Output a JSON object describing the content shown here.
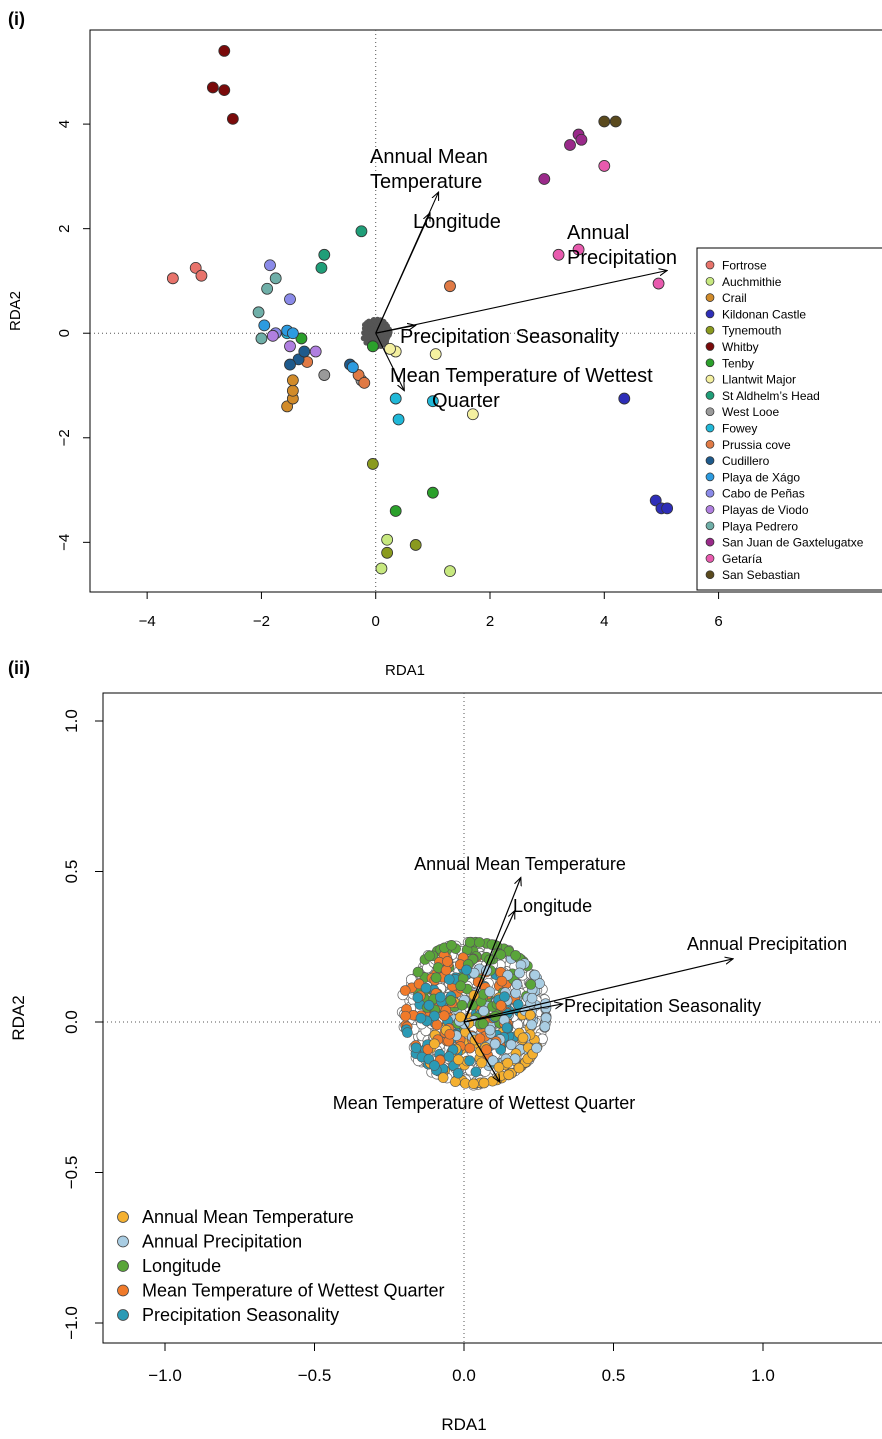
{
  "chart_data": [
    {
      "panel_label": "(i)",
      "type": "scatter",
      "xlabel": "RDA1",
      "ylabel": "RDA2",
      "xlim": [
        -5.0,
        9.0
      ],
      "ylim": [
        -4.95,
        5.8
      ],
      "xticks": [
        -4,
        -2,
        0,
        2,
        4,
        6
      ],
      "xtick_labels": [
        "−4",
        "−2",
        "0",
        "2",
        "4",
        "6"
      ],
      "yticks": [
        -4,
        -2,
        0,
        2,
        4
      ],
      "ytick_labels": [
        "−4",
        "−2",
        "0",
        "2",
        "4"
      ],
      "reference_lines": "dotted lines at x=0 and y=0",
      "legend_position": "right",
      "arrow_origin": [
        0,
        0
      ],
      "arrows": [
        {
          "label": "Annual Mean Temperature",
          "label_lines": [
            "Annual Mean",
            "Temperature"
          ],
          "x": 1.1,
          "y": 2.7
        },
        {
          "label": "Longitude",
          "label_lines": [
            "Longitude"
          ],
          "x": 0.95,
          "y": 2.3
        },
        {
          "label": "Annual Precipitation",
          "label_lines": [
            "Annual",
            "Precipitation"
          ],
          "x": 5.1,
          "y": 1.2
        },
        {
          "label": "Precipitation Seasonality",
          "label_lines": [
            "Precipitation Seasonality"
          ],
          "x": 0.7,
          "y": 0.15
        },
        {
          "label": "Mean Temperature of Wettest Quarter",
          "label_lines": [
            "Mean Temperature of Wettest",
            "Quarter"
          ],
          "x": 0.5,
          "y": -1.1
        }
      ],
      "snp_cloud": {
        "center": [
          0,
          0
        ],
        "note": "dense grey points"
      },
      "series": [
        {
          "name": "Fortrose",
          "color": "#E8736B",
          "points": [
            [
              -3.55,
              1.05
            ],
            [
              -3.15,
              1.25
            ],
            [
              -3.05,
              1.1
            ]
          ]
        },
        {
          "name": "Auchmithie",
          "color": "#C7E87F",
          "points": [
            [
              0.2,
              -3.95
            ],
            [
              0.1,
              -4.5
            ],
            [
              1.3,
              -4.55
            ]
          ]
        },
        {
          "name": "Crail",
          "color": "#D18B2A",
          "points": [
            [
              -1.55,
              -1.4
            ],
            [
              -1.45,
              -1.25
            ],
            [
              -1.45,
              -1.1
            ],
            [
              -1.45,
              -0.9
            ]
          ]
        },
        {
          "name": "Kildonan Castle",
          "color": "#2E2EB8",
          "points": [
            [
              4.35,
              -1.25
            ],
            [
              4.9,
              -3.2
            ],
            [
              5.0,
              -3.35
            ],
            [
              5.1,
              -3.35
            ]
          ]
        },
        {
          "name": "Tynemouth",
          "color": "#8A9A1E",
          "points": [
            [
              -0.05,
              -2.5
            ],
            [
              0.7,
              -4.05
            ],
            [
              0.2,
              -4.2
            ]
          ]
        },
        {
          "name": "Whitby",
          "color": "#7A0A0A",
          "points": [
            [
              -2.65,
              5.4
            ],
            [
              -2.85,
              4.7
            ],
            [
              -2.65,
              4.65
            ],
            [
              -2.5,
              4.1
            ]
          ]
        },
        {
          "name": "Tenby",
          "color": "#2BA02B",
          "points": [
            [
              1.0,
              -3.05
            ],
            [
              0.35,
              -3.4
            ],
            [
              -1.3,
              -0.1
            ],
            [
              -0.05,
              -0.25
            ]
          ]
        },
        {
          "name": "Llantwit Major",
          "color": "#F4F0A0",
          "points": [
            [
              0.35,
              -0.35
            ],
            [
              1.05,
              -0.4
            ],
            [
              1.7,
              -1.55
            ],
            [
              0.25,
              -0.3
            ]
          ]
        },
        {
          "name": "St Aldhelm’s Head",
          "color": "#1F9E78",
          "points": [
            [
              -0.25,
              1.95
            ],
            [
              -0.9,
              1.5
            ],
            [
              -0.95,
              1.25
            ]
          ]
        },
        {
          "name": "West Looe",
          "color": "#9A9A9A",
          "points": [
            [
              -0.9,
              -0.8
            ],
            [
              -0.25,
              -0.9
            ]
          ]
        },
        {
          "name": "Fowey",
          "color": "#20B8D8",
          "points": [
            [
              0.35,
              -1.25
            ],
            [
              0.4,
              -1.65
            ],
            [
              1.0,
              -1.3
            ],
            [
              -1.55,
              0.0
            ]
          ]
        },
        {
          "name": "Prussia cove",
          "color": "#E07A45",
          "points": [
            [
              1.3,
              0.9
            ],
            [
              -0.3,
              -0.8
            ],
            [
              -0.2,
              -0.95
            ],
            [
              -1.2,
              -0.55
            ]
          ]
        },
        {
          "name": "Cudillero",
          "color": "#1E5A8C",
          "points": [
            [
              -0.45,
              -0.6
            ],
            [
              -1.35,
              -0.5
            ],
            [
              -1.5,
              -0.6
            ],
            [
              -1.25,
              -0.35
            ]
          ]
        },
        {
          "name": "Playa de Xágo",
          "color": "#2C9BE0",
          "points": [
            [
              -1.95,
              0.15
            ],
            [
              -1.55,
              0.05
            ],
            [
              -1.45,
              0.0
            ],
            [
              -0.4,
              -0.65
            ]
          ]
        },
        {
          "name": "Cabo de Peñas",
          "color": "#8A8AE8",
          "points": [
            [
              -1.85,
              1.3
            ],
            [
              -1.5,
              0.65
            ],
            [
              -1.75,
              0.0
            ]
          ]
        },
        {
          "name": "Playas de Viodo",
          "color": "#B07FE0",
          "points": [
            [
              -1.5,
              -0.25
            ],
            [
              -1.05,
              -0.35
            ],
            [
              -1.8,
              -0.05
            ]
          ]
        },
        {
          "name": "Playa Pedrero",
          "color": "#6FAFA8",
          "points": [
            [
              -1.75,
              1.05
            ],
            [
              -1.9,
              0.85
            ],
            [
              -2.05,
              0.4
            ],
            [
              -2.0,
              -0.1
            ]
          ]
        },
        {
          "name": "San Juan de Gaxtelugatxe",
          "color": "#9A2A8A",
          "points": [
            [
              2.95,
              2.95
            ],
            [
              3.4,
              3.6
            ],
            [
              3.55,
              3.8
            ],
            [
              3.6,
              3.7
            ]
          ]
        },
        {
          "name": "Getaría",
          "color": "#E85AAE",
          "points": [
            [
              3.2,
              1.5
            ],
            [
              3.55,
              1.6
            ],
            [
              4.0,
              3.2
            ],
            [
              4.95,
              0.95
            ]
          ]
        },
        {
          "name": "San Sebastian",
          "color": "#5A4A1E",
          "points": [
            [
              4.0,
              4.05
            ],
            [
              4.2,
              4.05
            ]
          ]
        }
      ]
    },
    {
      "panel_label": "(ii)",
      "type": "scatter",
      "xlabel": "RDA1",
      "ylabel": "RDA2",
      "xlim": [
        -1.2,
        1.4
      ],
      "ylim": [
        -1.05,
        1.1
      ],
      "xticks": [
        -1.0,
        -0.5,
        0.0,
        0.5,
        1.0
      ],
      "xtick_labels": [
        "−1.0",
        "−0.5",
        "0.0",
        "0.5",
        "1.0"
      ],
      "yticks": [
        -1.0,
        -0.5,
        0.0,
        0.5,
        1.0
      ],
      "ytick_labels": [
        "−1.0",
        "−0.5",
        "0.0",
        "0.5",
        "1.0"
      ],
      "reference_lines": "dotted lines at x=0 and y=0",
      "legend_position": "bottom-left",
      "arrow_origin": [
        0,
        0
      ],
      "arrows": [
        {
          "label": "Annual Mean Temperature",
          "x": 0.19,
          "y": 0.48
        },
        {
          "label": "Longitude",
          "x": 0.17,
          "y": 0.37
        },
        {
          "label": "Annual Precipitation",
          "x": 0.9,
          "y": 0.21
        },
        {
          "label": "Precipitation Seasonality",
          "x": 0.33,
          "y": 0.06
        },
        {
          "label": "Mean Temperature of Wettest Quarter",
          "x": 0.12,
          "y": -0.2
        }
      ],
      "point_cloud": {
        "center": [
          0.03,
          0.03
        ],
        "radius_x": 0.25,
        "radius_y": 0.24
      },
      "legend": [
        {
          "name": "Annual Mean Temperature",
          "color": "#F4B030"
        },
        {
          "name": "Annual Precipitation",
          "color": "#A9CDE3"
        },
        {
          "name": "Longitude",
          "color": "#5AA53A"
        },
        {
          "name": "Mean Temperature of Wettest Quarter",
          "color": "#F07A2A"
        },
        {
          "name": "Precipitation Seasonality",
          "color": "#2B9AB5"
        }
      ]
    }
  ]
}
